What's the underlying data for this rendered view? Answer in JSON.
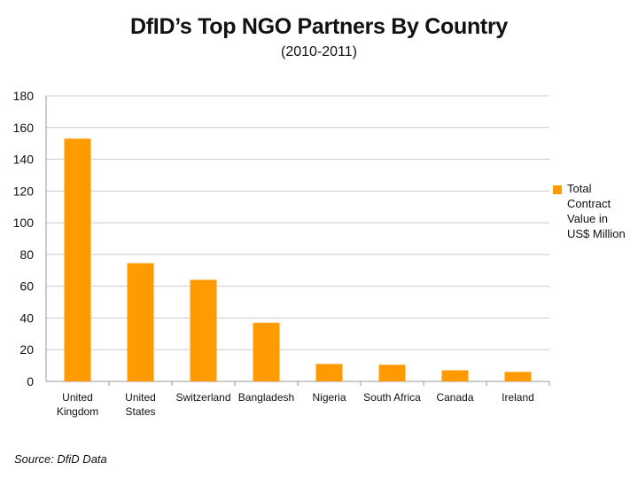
{
  "chart_data": {
    "type": "bar",
    "title": "DfID’s Top NGO Partners By Country",
    "subtitle": "(2010-2011)",
    "categories": [
      [
        "United",
        "Kingdom"
      ],
      [
        "United",
        "States"
      ],
      [
        "Switzerland"
      ],
      [
        "Bangladesh"
      ],
      [
        "Nigeria"
      ],
      [
        "South Africa"
      ],
      [
        "Canada"
      ],
      [
        "Ireland"
      ]
    ],
    "series": [
      {
        "name": "Total Contract Value in US$ Million",
        "values": [
          153,
          74.5,
          64,
          37,
          11,
          10.5,
          7,
          6
        ]
      }
    ],
    "ylim": [
      0,
      180
    ],
    "yticks": [
      0,
      20,
      40,
      60,
      80,
      100,
      120,
      140,
      160,
      180
    ],
    "grid": true,
    "legend": "right"
  },
  "colors": {
    "bar": "#ff9a00",
    "grid": "#cccccc",
    "axis": "#999999"
  },
  "legend_lines": [
    "Total",
    "Contract",
    "Value in",
    "US$ Million"
  ],
  "source": "Source: DfiD Data"
}
